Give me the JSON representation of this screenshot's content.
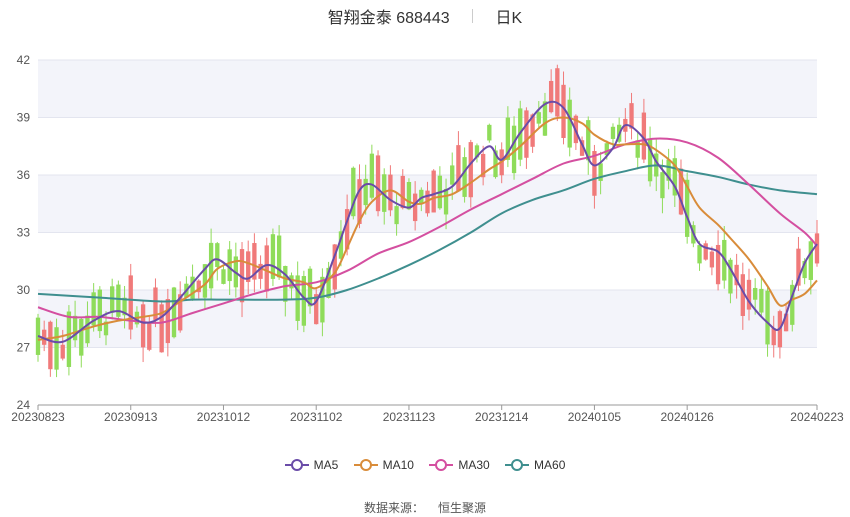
{
  "header": {
    "title": "智翔金泰 688443",
    "period": "日K"
  },
  "source": {
    "label": "数据来源：",
    "value": "恒生聚源"
  },
  "legend": [
    {
      "name": "MA5",
      "color": "#6a4ca8"
    },
    {
      "name": "MA10",
      "color": "#d98c3a"
    },
    {
      "name": "MA30",
      "color": "#d44fa0"
    },
    {
      "name": "MA60",
      "color": "#3f8f8f"
    }
  ],
  "chart_data": {
    "type": "candlestick",
    "ylim": [
      24,
      42
    ],
    "yticks": [
      24,
      27,
      30,
      33,
      36,
      39,
      42
    ],
    "x_tick_labels": [
      "20230823",
      "20230913",
      "20231012",
      "20231102",
      "20231123",
      "20231214",
      "20240105",
      "20240126",
      "20240223"
    ],
    "x_tick_index": [
      0,
      15,
      30,
      45,
      60,
      75,
      90,
      105,
      120
    ],
    "n_days": 121,
    "up_color": "#f07a7a",
    "down_color": "#8fdc5a",
    "series": [
      {
        "name": "MA5",
        "color": "#6a4ca8",
        "values": [
          [
            0,
            27.6
          ],
          [
            4,
            27.3
          ],
          [
            9,
            28.4
          ],
          [
            13,
            28.9
          ],
          [
            17,
            28.3
          ],
          [
            20,
            28.6
          ],
          [
            23,
            29.6
          ],
          [
            27,
            31.1
          ],
          [
            29,
            31.6
          ],
          [
            32,
            30.9
          ],
          [
            34,
            30.6
          ],
          [
            37,
            31.3
          ],
          [
            40,
            30.8
          ],
          [
            43,
            29.6
          ],
          [
            45,
            29.4
          ],
          [
            48,
            31.8
          ],
          [
            50,
            33.6
          ],
          [
            52,
            35.2
          ],
          [
            54,
            35.5
          ],
          [
            57,
            34.7
          ],
          [
            60,
            34.3
          ],
          [
            62,
            34.8
          ],
          [
            64,
            35.0
          ],
          [
            67,
            35.4
          ],
          [
            70,
            36.6
          ],
          [
            73,
            37.5
          ],
          [
            75,
            36.8
          ],
          [
            78,
            38.2
          ],
          [
            82,
            39.7
          ],
          [
            85,
            39.5
          ],
          [
            88,
            37.6
          ],
          [
            90,
            36.5
          ],
          [
            93,
            37.4
          ],
          [
            95,
            38.6
          ],
          [
            98,
            37.9
          ],
          [
            100,
            36.7
          ],
          [
            103,
            35.4
          ],
          [
            105,
            33.8
          ],
          [
            107,
            32.4
          ],
          [
            110,
            32.0
          ],
          [
            112,
            31.1
          ],
          [
            115,
            29.4
          ],
          [
            118,
            28.3
          ],
          [
            120,
            28.0
          ],
          [
            122,
            29.7
          ],
          [
            124,
            31.4
          ],
          [
            126,
            32.4
          ]
        ]
      },
      {
        "name": "MA10",
        "color": "#d98c3a",
        "values": [
          [
            0,
            27.4
          ],
          [
            4,
            27.6
          ],
          [
            9,
            28.1
          ],
          [
            13,
            28.4
          ],
          [
            17,
            28.6
          ],
          [
            20,
            28.8
          ],
          [
            23,
            29.4
          ],
          [
            27,
            30.3
          ],
          [
            29,
            31.1
          ],
          [
            32,
            31.5
          ],
          [
            34,
            31.4
          ],
          [
            37,
            31.0
          ],
          [
            40,
            30.6
          ],
          [
            43,
            30.4
          ],
          [
            45,
            30.1
          ],
          [
            48,
            30.9
          ],
          [
            50,
            32.2
          ],
          [
            52,
            33.6
          ],
          [
            54,
            34.6
          ],
          [
            57,
            35.2
          ],
          [
            60,
            34.6
          ],
          [
            62,
            34.5
          ],
          [
            64,
            34.8
          ],
          [
            67,
            35.0
          ],
          [
            70,
            35.6
          ],
          [
            73,
            36.3
          ],
          [
            75,
            36.7
          ],
          [
            78,
            37.5
          ],
          [
            82,
            38.7
          ],
          [
            85,
            39.0
          ],
          [
            88,
            38.7
          ],
          [
            90,
            38.1
          ],
          [
            93,
            37.6
          ],
          [
            95,
            37.6
          ],
          [
            98,
            37.6
          ],
          [
            100,
            37.3
          ],
          [
            103,
            36.5
          ],
          [
            105,
            35.4
          ],
          [
            107,
            34.3
          ],
          [
            110,
            33.4
          ],
          [
            112,
            32.7
          ],
          [
            115,
            31.6
          ],
          [
            118,
            30.2
          ],
          [
            120,
            29.2
          ],
          [
            122,
            29.5
          ],
          [
            124,
            29.8
          ],
          [
            126,
            30.5
          ]
        ]
      },
      {
        "name": "MA30",
        "color": "#d44fa0",
        "values": [
          [
            0,
            29.1
          ],
          [
            5,
            28.6
          ],
          [
            10,
            28.6
          ],
          [
            15,
            28.4
          ],
          [
            20,
            28.3
          ],
          [
            25,
            28.8
          ],
          [
            30,
            29.3
          ],
          [
            35,
            29.8
          ],
          [
            40,
            30.2
          ],
          [
            45,
            30.4
          ],
          [
            50,
            31.0
          ],
          [
            55,
            31.9
          ],
          [
            60,
            32.5
          ],
          [
            65,
            33.3
          ],
          [
            70,
            34.2
          ],
          [
            75,
            35.0
          ],
          [
            80,
            35.8
          ],
          [
            85,
            36.6
          ],
          [
            90,
            37.0
          ],
          [
            95,
            37.6
          ],
          [
            100,
            37.9
          ],
          [
            105,
            37.7
          ],
          [
            110,
            36.9
          ],
          [
            115,
            35.5
          ],
          [
            120,
            34.0
          ],
          [
            124,
            33.0
          ],
          [
            126,
            32.3
          ]
        ]
      },
      {
        "name": "MA60",
        "color": "#3f8f8f",
        "values": [
          [
            0,
            29.8
          ],
          [
            10,
            29.6
          ],
          [
            20,
            29.4
          ],
          [
            25,
            29.5
          ],
          [
            30,
            29.5
          ],
          [
            40,
            29.5
          ],
          [
            45,
            29.6
          ],
          [
            50,
            30.0
          ],
          [
            55,
            30.6
          ],
          [
            60,
            31.3
          ],
          [
            65,
            32.1
          ],
          [
            70,
            33.0
          ],
          [
            75,
            34.0
          ],
          [
            80,
            34.7
          ],
          [
            85,
            35.2
          ],
          [
            90,
            35.8
          ],
          [
            95,
            36.2
          ],
          [
            100,
            36.5
          ],
          [
            105,
            36.2
          ],
          [
            110,
            35.9
          ],
          [
            115,
            35.5
          ],
          [
            120,
            35.2
          ],
          [
            126,
            35.0
          ]
        ]
      }
    ]
  }
}
